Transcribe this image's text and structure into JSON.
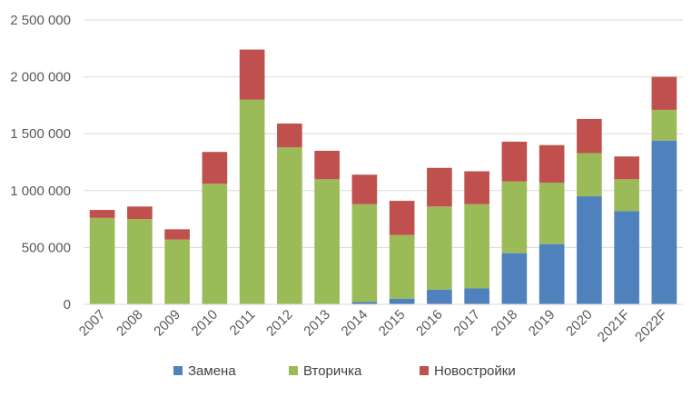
{
  "chart_data": {
    "type": "bar",
    "stacked": true,
    "categories": [
      "2007",
      "2008",
      "2009",
      "2010",
      "2011",
      "2012",
      "2013",
      "2014",
      "2015",
      "2016",
      "2017",
      "2018",
      "2019",
      "2020",
      "2021F",
      "2022F"
    ],
    "series": [
      {
        "name": "Замена",
        "color": "#4f81bd",
        "values": [
          0,
          0,
          0,
          0,
          0,
          0,
          0,
          20000,
          50000,
          130000,
          140000,
          450000,
          530000,
          950000,
          820000,
          1440000
        ]
      },
      {
        "name": "Вторичка",
        "color": "#9bbb59",
        "values": [
          760000,
          750000,
          570000,
          1060000,
          1800000,
          1380000,
          1100000,
          860000,
          560000,
          730000,
          740000,
          630000,
          540000,
          380000,
          280000,
          270000
        ]
      },
      {
        "name": "Новостройки",
        "color": "#c0504d",
        "values": [
          70000,
          110000,
          90000,
          280000,
          440000,
          210000,
          250000,
          260000,
          300000,
          340000,
          290000,
          350000,
          330000,
          300000,
          200000,
          290000
        ]
      }
    ],
    "ylim": [
      0,
      2500000
    ],
    "yticks": [
      0,
      500000,
      1000000,
      1500000,
      2000000,
      2500000
    ],
    "ytick_labels": [
      "0",
      "500 000",
      "1 000 000",
      "1 500 000",
      "2 000 000",
      "2 500 000"
    ],
    "grid": true,
    "legend_position": "bottom",
    "title": "",
    "xlabel": "",
    "ylabel": ""
  }
}
